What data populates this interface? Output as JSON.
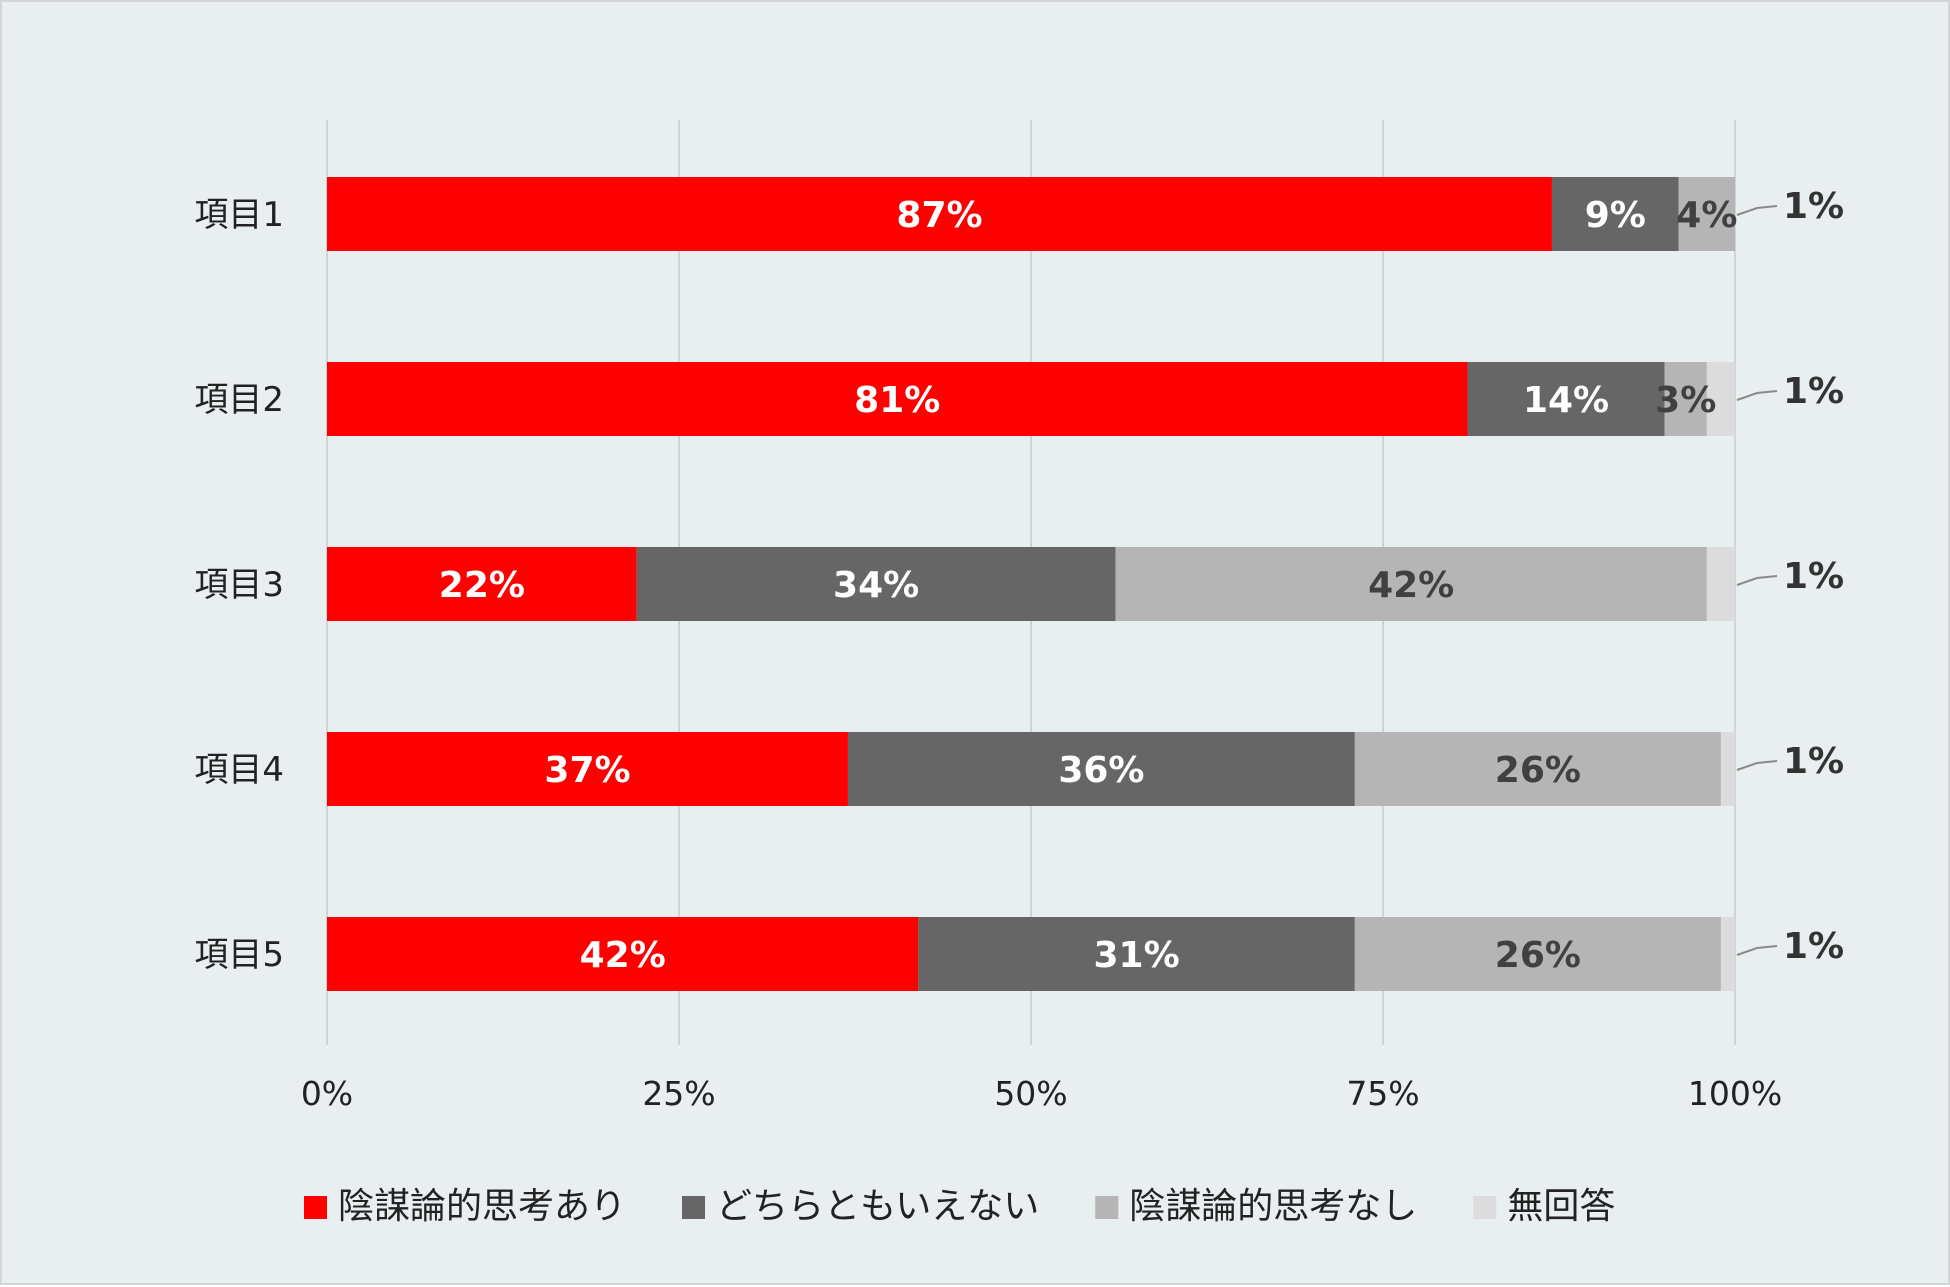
{
  "chart_data": {
    "type": "bar",
    "orientation": "horizontal",
    "stacked": true,
    "categories": [
      "項目1",
      "項目2",
      "項目3",
      "項目4",
      "項目5"
    ],
    "series": [
      {
        "name": "陰謀論的思考あり",
        "color": "#ff0000",
        "label_color": "#ffffff",
        "values": [
          87,
          81,
          22,
          37,
          42
        ]
      },
      {
        "name": "どちらともいえない",
        "color": "#666666",
        "label_color": "#ffffff",
        "values": [
          9,
          14,
          34,
          36,
          31
        ]
      },
      {
        "name": "陰謀論的思考なし",
        "color": "#b5b5b5",
        "label_color": "#404040",
        "values": [
          4,
          3,
          42,
          26,
          26
        ]
      },
      {
        "name": "無回答",
        "color": "#dcdcdc",
        "label_color": "#333333",
        "values": [
          1,
          1,
          1,
          1,
          1
        ]
      }
    ],
    "value_labels": [
      [
        "87%",
        "9%",
        "4%",
        "1%"
      ],
      [
        "81%",
        "14%",
        "3%",
        "1%"
      ],
      [
        "22%",
        "34%",
        "42%",
        "1%"
      ],
      [
        "37%",
        "36%",
        "26%",
        "1%"
      ],
      [
        "42%",
        "31%",
        "26%",
        "1%"
      ]
    ],
    "x_ticks": [
      0,
      25,
      50,
      75,
      100
    ],
    "x_tick_labels": [
      "0%",
      "25%",
      "50%",
      "75%",
      "100%"
    ],
    "xlim": [
      0,
      100
    ],
    "grid": true,
    "legend_position": "bottom",
    "title": "",
    "xlabel": "",
    "ylabel": ""
  }
}
